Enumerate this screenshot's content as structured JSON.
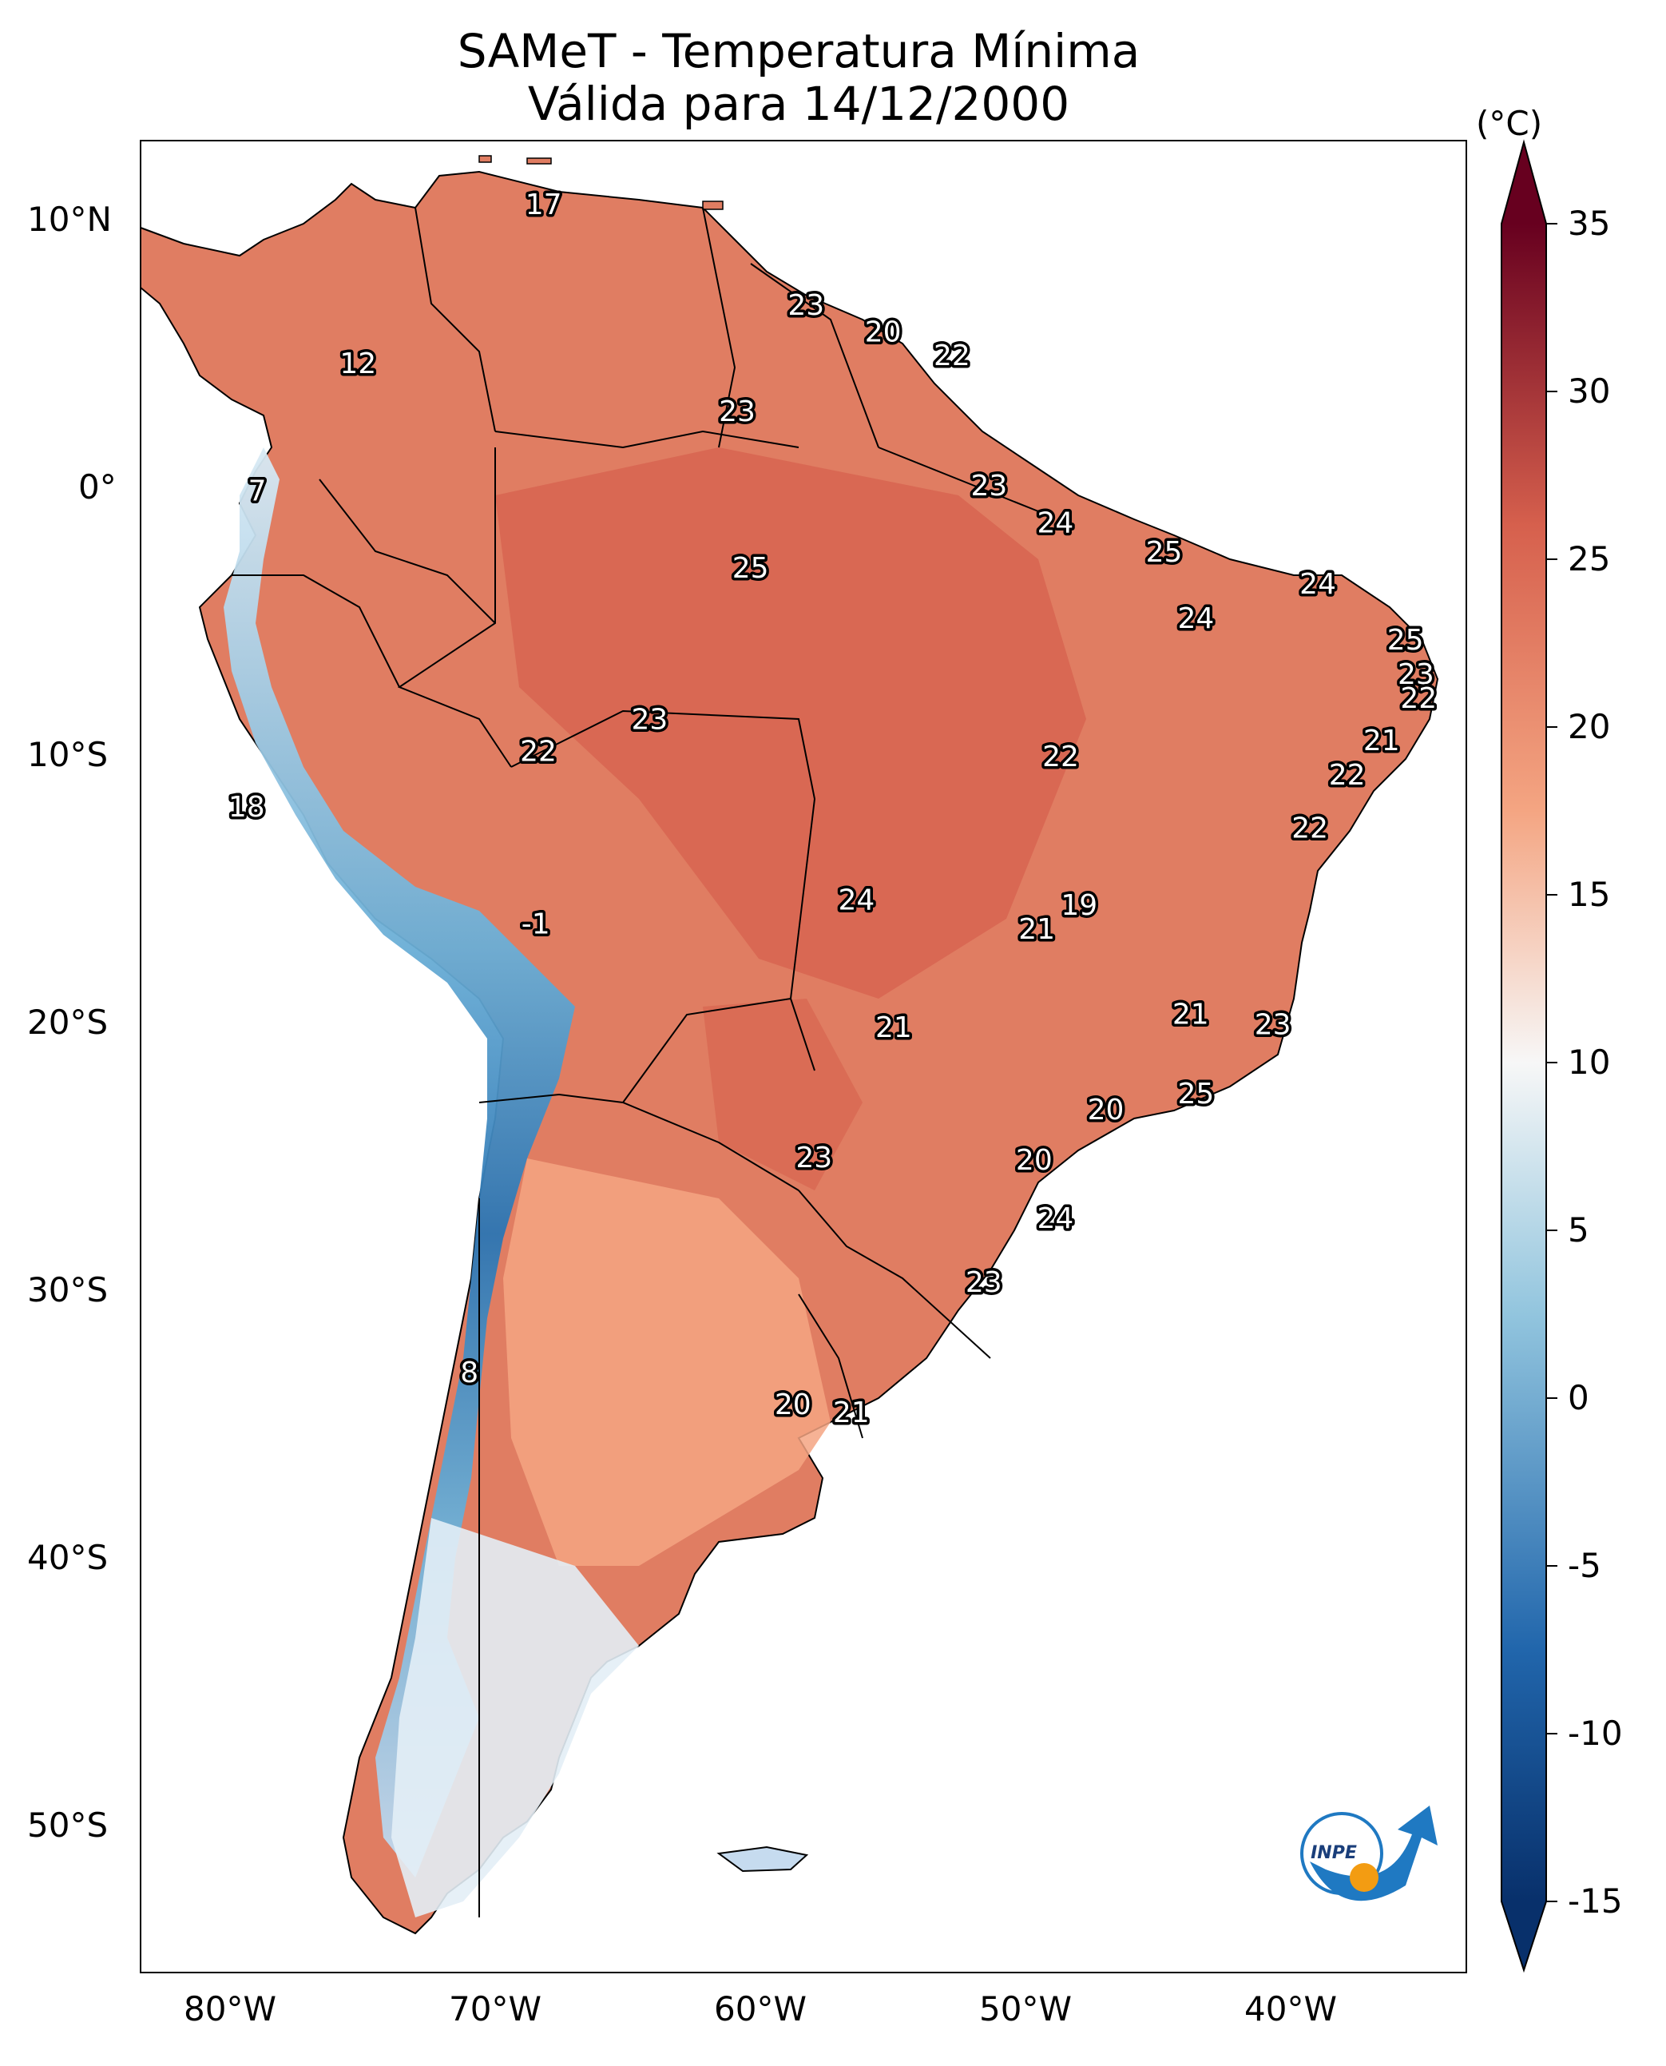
{
  "title": "SAMeT - Temperatura Mínima",
  "subtitle": "Válida para 14/12/2000",
  "colorbar": {
    "unit": "(°C)",
    "ticks": [
      "35",
      "30",
      "25",
      "20",
      "15",
      "10",
      "5",
      "0",
      "-5",
      "-10",
      "-15"
    ],
    "range": [
      -15,
      35
    ],
    "colors": {
      "min": "#08306b",
      "cold": "#2166ac",
      "cool": "#92c5de",
      "neutral": "#f7f7f7",
      "warm": "#f4a582",
      "hot": "#d6604d",
      "max": "#67001f"
    }
  },
  "axes": {
    "lat_ticks": [
      "10°N",
      "0°",
      "10°S",
      "20°S",
      "30°S",
      "40°S",
      "50°S"
    ],
    "lon_ticks": [
      "80°W",
      "70°W",
      "60°W",
      "50°W",
      "40°W"
    ]
  },
  "chart_data": {
    "type": "heatmap",
    "variable": "minimum temperature",
    "xlim": [
      -83,
      -33
    ],
    "ylim": [
      -56,
      13
    ],
    "station_values": [
      {
        "lon": -67.8,
        "lat": 10.6,
        "value": "17"
      },
      {
        "lon": -74.8,
        "lat": 4.6,
        "value": "12"
      },
      {
        "lon": -78.6,
        "lat": -0.2,
        "value": "7"
      },
      {
        "lon": -79.0,
        "lat": -12.1,
        "value": "18"
      },
      {
        "lon": -57.9,
        "lat": 6.8,
        "value": "23"
      },
      {
        "lon": -55.0,
        "lat": 5.8,
        "value": "20"
      },
      {
        "lon": -52.4,
        "lat": 4.9,
        "value": "22"
      },
      {
        "lon": -60.5,
        "lat": 2.8,
        "value": "23"
      },
      {
        "lon": -51.0,
        "lat": 0.0,
        "value": "23"
      },
      {
        "lon": -48.5,
        "lat": -1.4,
        "value": "24"
      },
      {
        "lon": -44.4,
        "lat": -2.5,
        "value": "25"
      },
      {
        "lon": -38.6,
        "lat": -3.7,
        "value": "24"
      },
      {
        "lon": -43.2,
        "lat": -5.0,
        "value": "24"
      },
      {
        "lon": -35.3,
        "lat": -5.8,
        "value": "25"
      },
      {
        "lon": -34.9,
        "lat": -7.1,
        "value": "23"
      },
      {
        "lon": -34.8,
        "lat": -8.0,
        "value": "22"
      },
      {
        "lon": -36.2,
        "lat": -9.6,
        "value": "21"
      },
      {
        "lon": -37.5,
        "lat": -10.9,
        "value": "22"
      },
      {
        "lon": -38.9,
        "lat": -12.9,
        "value": "22"
      },
      {
        "lon": -60.0,
        "lat": -3.1,
        "value": "25"
      },
      {
        "lon": -63.8,
        "lat": -8.8,
        "value": "23"
      },
      {
        "lon": -68.0,
        "lat": -10.0,
        "value": "22"
      },
      {
        "lon": -48.3,
        "lat": -10.2,
        "value": "22"
      },
      {
        "lon": -56.0,
        "lat": -15.6,
        "value": "24"
      },
      {
        "lon": -47.6,
        "lat": -15.8,
        "value": "19"
      },
      {
        "lon": -49.2,
        "lat": -16.7,
        "value": "21"
      },
      {
        "lon": -68.1,
        "lat": -16.5,
        "value": "-1"
      },
      {
        "lon": -54.6,
        "lat": -20.4,
        "value": "21"
      },
      {
        "lon": -43.4,
        "lat": -19.9,
        "value": "21"
      },
      {
        "lon": -40.3,
        "lat": -20.3,
        "value": "23"
      },
      {
        "lon": -43.2,
        "lat": -22.9,
        "value": "25"
      },
      {
        "lon": -46.6,
        "lat": -23.5,
        "value": "20"
      },
      {
        "lon": -57.6,
        "lat": -25.3,
        "value": "23"
      },
      {
        "lon": -49.3,
        "lat": -25.4,
        "value": "20"
      },
      {
        "lon": -48.5,
        "lat": -27.6,
        "value": "24"
      },
      {
        "lon": -51.2,
        "lat": -30.0,
        "value": "23"
      },
      {
        "lon": -70.6,
        "lat": -33.4,
        "value": "8"
      },
      {
        "lon": -58.4,
        "lat": -34.6,
        "value": "20"
      },
      {
        "lon": -56.2,
        "lat": -34.9,
        "value": "21"
      }
    ]
  },
  "logo": {
    "text": "INPE"
  }
}
